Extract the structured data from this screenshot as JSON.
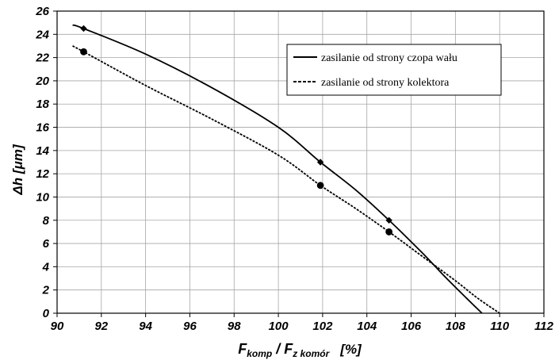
{
  "chart_data": {
    "type": "line",
    "xlabel": {
      "main1": "F",
      "sub1": "komp",
      "sep": " / F",
      "sub2": "z komór",
      "unit": "[%]"
    },
    "ylabel": {
      "symbol": "Δh",
      "unit_open": " [",
      "unit": "μm",
      "unit_close": "]"
    },
    "xlim": [
      90,
      112
    ],
    "ylim": [
      0,
      26
    ],
    "x_ticks": [
      "90",
      "92",
      "94",
      "96",
      "98",
      "100",
      "102",
      "104",
      "106",
      "108",
      "110",
      "112"
    ],
    "y_ticks": [
      "0",
      "2",
      "4",
      "6",
      "8",
      "10",
      "12",
      "14",
      "16",
      "18",
      "20",
      "22",
      "24",
      "26"
    ],
    "grid": true,
    "legend_position": "top-right",
    "series": [
      {
        "name": "zasilanie od strony czopa wału",
        "line_style": "solid",
        "marker": "diamond",
        "color": "#000000",
        "points": [
          {
            "x": 91.2,
            "y": 24.5
          },
          {
            "x": 101.9,
            "y": 13.0
          },
          {
            "x": 105.0,
            "y": 8.0
          }
        ],
        "curve": [
          {
            "x": 90.7,
            "y": 24.8
          },
          {
            "x": 91.2,
            "y": 24.5
          },
          {
            "x": 94.0,
            "y": 22.3
          },
          {
            "x": 97.0,
            "y": 19.4
          },
          {
            "x": 100.0,
            "y": 16.0
          },
          {
            "x": 101.9,
            "y": 13.0
          },
          {
            "x": 103.5,
            "y": 10.6
          },
          {
            "x": 105.0,
            "y": 8.0
          },
          {
            "x": 106.5,
            "y": 5.2
          },
          {
            "x": 107.5,
            "y": 3.2
          },
          {
            "x": 108.5,
            "y": 1.3
          },
          {
            "x": 109.2,
            "y": 0.0
          }
        ]
      },
      {
        "name": "zasilanie od strony kolektora",
        "line_style": "dashed",
        "marker": "circle",
        "color": "#000000",
        "points": [
          {
            "x": 91.2,
            "y": 22.5
          },
          {
            "x": 101.9,
            "y": 11.0
          },
          {
            "x": 105.0,
            "y": 7.0
          }
        ],
        "curve": [
          {
            "x": 90.7,
            "y": 23.0
          },
          {
            "x": 91.2,
            "y": 22.5
          },
          {
            "x": 94.0,
            "y": 19.6
          },
          {
            "x": 97.0,
            "y": 16.7
          },
          {
            "x": 100.0,
            "y": 13.6
          },
          {
            "x": 101.9,
            "y": 11.0
          },
          {
            "x": 103.5,
            "y": 9.0
          },
          {
            "x": 105.0,
            "y": 7.0
          },
          {
            "x": 106.5,
            "y": 4.9
          },
          {
            "x": 108.0,
            "y": 2.8
          },
          {
            "x": 109.0,
            "y": 1.3
          },
          {
            "x": 110.0,
            "y": 0.0
          }
        ]
      }
    ]
  }
}
